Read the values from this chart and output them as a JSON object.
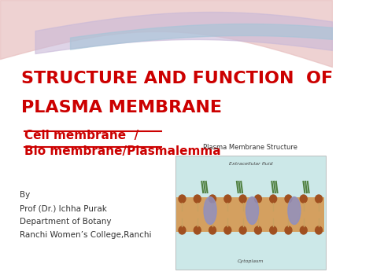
{
  "bg_color": "#ffffff",
  "title_line1": "STRUCTURE AND FUNCTION  OF",
  "title_line2": "PLASMA MEMBRANE",
  "title_color": "#cc0000",
  "subtitle_line1": "Cell membrane  /",
  "subtitle_line2": "Bio membrane/Plasmalemma",
  "subtitle_color": "#cc0000",
  "byline1": "By",
  "byline2": "Prof (Dr.) Ichha Purak",
  "byline3": "Department of Botany",
  "byline4": "Ranchi Women’s College,Ranchi",
  "byline_color": "#333333",
  "diagram_title": "Plasma Membrane Structure",
  "wave_colors": [
    "#d4a0a0",
    "#c8b4c8",
    "#b0c8e0"
  ],
  "diagram_bg": "#cce8e8"
}
